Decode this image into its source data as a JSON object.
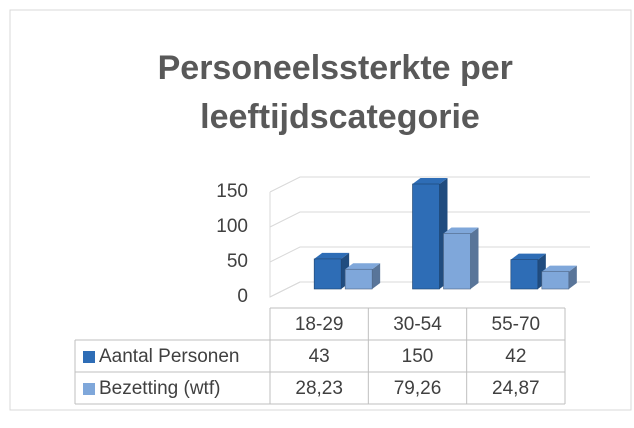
{
  "chart_data": {
    "type": "bar3d",
    "title": "Personeelssterkte per leeftijdscategorie",
    "categories": [
      "18-29",
      "30-54",
      "55-70"
    ],
    "series": [
      {
        "name": "Aantal Personen",
        "color": "#2e6db6",
        "values": [
          43,
          150,
          42
        ]
      },
      {
        "name": "Bezetting (wtf)",
        "color": "#7fa7da",
        "values": [
          28.23,
          79.26,
          24.87
        ],
        "value_labels": [
          "28,23",
          "79,26",
          "24,87"
        ]
      }
    ],
    "ylim": [
      0,
      150
    ],
    "yticks": [
      0,
      50,
      100,
      150
    ],
    "grid": true,
    "legend": "table"
  }
}
